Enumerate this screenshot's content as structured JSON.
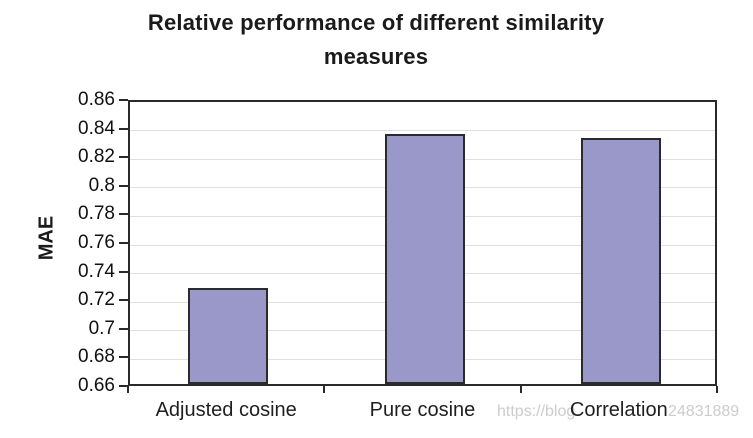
{
  "title": "Relative performance of different similarity measures",
  "chart_data": {
    "type": "bar",
    "title": "Relative performance of different similarity measures",
    "categories": [
      "Adjusted cosine",
      "Pure cosine",
      "Correlation"
    ],
    "values": [
      0.727,
      0.835,
      0.832
    ],
    "xlabel": "",
    "ylabel": "MAE",
    "ylim": [
      0.66,
      0.86
    ],
    "ytick_step": 0.02,
    "ytick_labels": [
      "0.86",
      "0.84",
      "0.82",
      "0.8",
      "0.78",
      "0.76",
      "0.74",
      "0.72",
      "0.7",
      "0.68",
      "0.66"
    ],
    "grid": true,
    "legend": false,
    "bar_color": "#9a97c9",
    "bar_border_color": "#2b2b2b",
    "axis_color": "#2a2a2a",
    "gridline_color": "#e0e0e0"
  },
  "watermark": {
    "prefix": "https://blog",
    "suffix": "24831889",
    "color": "#cccccc"
  }
}
